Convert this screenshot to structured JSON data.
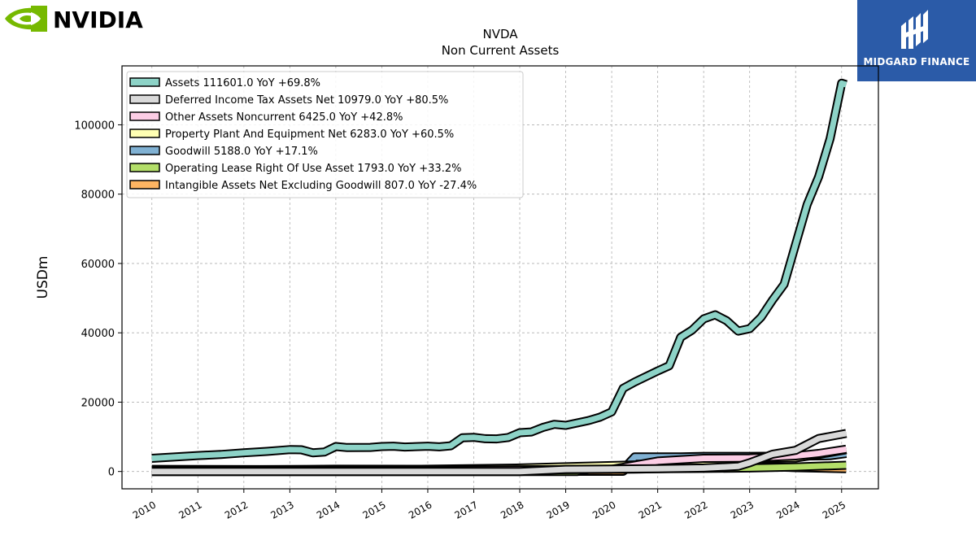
{
  "brand": {
    "left_logo_text": "NVIDIA",
    "right_logo_text": "MIDGARD FINANCE",
    "nvidia_green": "#76b900",
    "midgard_blue": "#2b5ba8"
  },
  "chart_data": {
    "type": "area",
    "title": "NVDA",
    "subtitle": "Non Current  Assets",
    "ylabel": "USDm",
    "xlabel": "",
    "xlim": [
      2009.35,
      2025.8
    ],
    "ylim": [
      -5000,
      117000
    ],
    "x_ticks": [
      "2010",
      "2011",
      "2012",
      "2013",
      "2014",
      "2015",
      "2016",
      "2017",
      "2018",
      "2019",
      "2020",
      "2021",
      "2022",
      "2023",
      "2024",
      "2025"
    ],
    "y_ticks": [
      0,
      20000,
      40000,
      60000,
      80000,
      100000
    ],
    "y_tick_labels": [
      "0",
      "20000",
      "40000",
      "60000",
      "80000",
      "100000"
    ],
    "grid": true,
    "legend_position": "top-left",
    "series": [
      {
        "name": "Assets",
        "legend_label": "Assets  111601.0 YoY +69.8%",
        "color": "#8dd3c7",
        "points": [
          [
            2010.0,
            3800
          ],
          [
            2011.0,
            4600
          ],
          [
            2011.5,
            4900
          ],
          [
            2012.0,
            5400
          ],
          [
            2012.5,
            5800
          ],
          [
            2013.0,
            6300
          ],
          [
            2013.25,
            6250
          ],
          [
            2013.5,
            5400
          ],
          [
            2013.75,
            5600
          ],
          [
            2014.0,
            7200
          ],
          [
            2014.25,
            6900
          ],
          [
            2014.75,
            6950
          ],
          [
            2015.0,
            7200
          ],
          [
            2015.25,
            7300
          ],
          [
            2015.5,
            7050
          ],
          [
            2016.0,
            7300
          ],
          [
            2016.25,
            7100
          ],
          [
            2016.5,
            7400
          ],
          [
            2016.75,
            9700
          ],
          [
            2017.0,
            9850
          ],
          [
            2017.25,
            9450
          ],
          [
            2017.5,
            9400
          ],
          [
            2017.75,
            9800
          ],
          [
            2018.0,
            11200
          ],
          [
            2018.25,
            11400
          ],
          [
            2018.5,
            12700
          ],
          [
            2018.75,
            13600
          ],
          [
            2019.0,
            13300
          ],
          [
            2019.25,
            14000
          ],
          [
            2019.5,
            14700
          ],
          [
            2019.75,
            15700
          ],
          [
            2020.0,
            17200
          ],
          [
            2020.25,
            24000
          ],
          [
            2020.5,
            25800
          ],
          [
            2021.0,
            29000
          ],
          [
            2021.25,
            30500
          ],
          [
            2021.5,
            38700
          ],
          [
            2021.75,
            40800
          ],
          [
            2022.0,
            44000
          ],
          [
            2022.25,
            45200
          ],
          [
            2022.5,
            43500
          ],
          [
            2022.75,
            40500
          ],
          [
            2023.0,
            41200
          ],
          [
            2023.25,
            44500
          ],
          [
            2023.5,
            49500
          ],
          [
            2023.75,
            54000
          ],
          [
            2024.0,
            65500
          ],
          [
            2024.25,
            77000
          ],
          [
            2024.5,
            85000
          ],
          [
            2024.75,
            96000
          ],
          [
            2025.0,
            112000
          ],
          [
            2025.1,
            111601
          ]
        ]
      },
      {
        "name": "Deferred Income Tax Assets Net",
        "legend_label": "Deferred Income Tax Assets Net  10979.0 YoY +80.5%",
        "color": "#d9d9d9",
        "points": [
          [
            2010.0,
            0
          ],
          [
            2018.0,
            0
          ],
          [
            2019.0,
            600
          ],
          [
            2020.0,
            700
          ],
          [
            2021.0,
            800
          ],
          [
            2022.0,
            1000
          ],
          [
            2022.75,
            1500
          ],
          [
            2023.0,
            2500
          ],
          [
            2023.5,
            5000
          ],
          [
            2024.0,
            6100
          ],
          [
            2024.5,
            9500
          ],
          [
            2025.1,
            10979
          ]
        ]
      },
      {
        "name": "Other Assets Noncurrent",
        "legend_label": "Other Assets Noncurrent  6425.0 YoY +42.8%",
        "color": "#fccde5",
        "points": [
          [
            2010.0,
            200
          ],
          [
            2015.0,
            300
          ],
          [
            2020.0,
            600
          ],
          [
            2021.0,
            3000
          ],
          [
            2022.0,
            3800
          ],
          [
            2023.0,
            3900
          ],
          [
            2024.0,
            4500
          ],
          [
            2024.5,
            5200
          ],
          [
            2025.1,
            6425
          ]
        ]
      },
      {
        "name": "Property Plant And Equipment Net",
        "legend_label": "Property Plant And Equipment Net  6283.0 YoY +60.5%",
        "color": "#ffffb3",
        "points": [
          [
            2010.0,
            600
          ],
          [
            2015.0,
            500
          ],
          [
            2018.0,
            1000
          ],
          [
            2020.0,
            1700
          ],
          [
            2021.0,
            2100
          ],
          [
            2022.0,
            2800
          ],
          [
            2023.0,
            3700
          ],
          [
            2024.0,
            3900
          ],
          [
            2024.5,
            4900
          ],
          [
            2025.1,
            6283
          ]
        ]
      },
      {
        "name": "Goodwill",
        "legend_label": "Goodwill  5188.0 YoY +17.1%",
        "color": "#80b1d3",
        "points": [
          [
            2010.0,
            350
          ],
          [
            2014.0,
            650
          ],
          [
            2018.0,
            620
          ],
          [
            2020.25,
            620
          ],
          [
            2020.5,
            4190
          ],
          [
            2021.5,
            4190
          ],
          [
            2022.0,
            4350
          ],
          [
            2023.0,
            4370
          ],
          [
            2024.0,
            4430
          ],
          [
            2024.75,
            4550
          ],
          [
            2025.1,
            5188
          ]
        ]
      },
      {
        "name": "Operating Lease Right Of Use Asset",
        "legend_label": "Operating Lease Right Of Use Asset  1793.0 YoY +33.2%",
        "color": "#b3de69",
        "points": [
          [
            2010.0,
            0
          ],
          [
            2019.25,
            0
          ],
          [
            2019.5,
            600
          ],
          [
            2020.25,
            650
          ],
          [
            2020.5,
            700
          ],
          [
            2021.0,
            830
          ],
          [
            2022.0,
            900
          ],
          [
            2023.0,
            1000
          ],
          [
            2024.0,
            1300
          ],
          [
            2025.1,
            1793
          ]
        ]
      },
      {
        "name": "Intangible Assets Net Excluding Goodwill",
        "legend_label": "Intangible Assets Net Excluding Goodwill  807.0 YoY -27.4%",
        "color": "#fdb462",
        "points": [
          [
            2010.0,
            300
          ],
          [
            2012.0,
            300
          ],
          [
            2013.0,
            320
          ],
          [
            2016.0,
            200
          ],
          [
            2018.0,
            50
          ],
          [
            2020.25,
            50
          ],
          [
            2020.5,
            2900
          ],
          [
            2021.0,
            2700
          ],
          [
            2022.0,
            2300
          ],
          [
            2023.0,
            1700
          ],
          [
            2024.0,
            1100
          ],
          [
            2025.1,
            807
          ]
        ]
      }
    ]
  }
}
